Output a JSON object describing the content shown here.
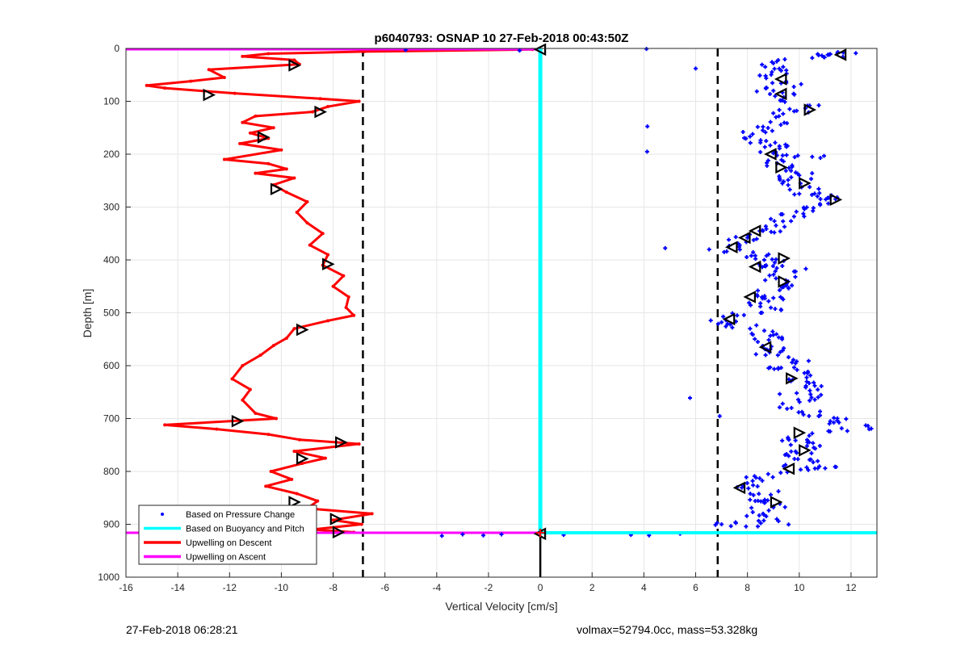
{
  "chart_data": {
    "type": "scatter",
    "title": "p6040793: OSNAP 10 27-Feb-2018 00:43:50Z",
    "xlabel": "Vertical Velocity [cm/s]",
    "ylabel": "Depth [m]",
    "xlim": [
      -16,
      13
    ],
    "ylim": [
      0,
      1000
    ],
    "y_reversed": true,
    "grid": true,
    "xticks": [
      -16,
      -14,
      -12,
      -10,
      -8,
      -6,
      -4,
      -2,
      0,
      2,
      4,
      6,
      8,
      10,
      12
    ],
    "yticks": [
      0,
      100,
      200,
      300,
      400,
      500,
      600,
      700,
      800,
      900,
      1000
    ],
    "legend_position": "bottom-left",
    "legend": [
      {
        "label": "Based on Pressure Change",
        "color": "#0000ff",
        "style": "marker"
      },
      {
        "label": "Based on Buoyancy and Pitch",
        "color": "#00ffff",
        "style": "line"
      },
      {
        "label": "Upwelling on Descent",
        "color": "#ff0000",
        "style": "line"
      },
      {
        "label": "Upwelling on Ascent",
        "color": "#ff00ff",
        "style": "line"
      }
    ],
    "reference_lines": {
      "dashed_x": [
        -6.85,
        6.85
      ],
      "max_depth": 916
    },
    "series": [
      {
        "name": "Upwelling on Descent",
        "color": "#ff0000",
        "points": [
          [
            -0.3,
            2
          ],
          [
            -6.8,
            6
          ],
          [
            -10.5,
            10
          ],
          [
            -11.5,
            15
          ],
          [
            -9.5,
            22
          ],
          [
            -9.3,
            30
          ],
          [
            -12.8,
            40
          ],
          [
            -12.2,
            55
          ],
          [
            -13.5,
            62
          ],
          [
            -15.2,
            70
          ],
          [
            -14.5,
            75
          ],
          [
            -11.8,
            85
          ],
          [
            -8.5,
            95
          ],
          [
            -7.0,
            100
          ],
          [
            -8.2,
            110
          ],
          [
            -8.8,
            120
          ],
          [
            -11.0,
            128
          ],
          [
            -11.5,
            140
          ],
          [
            -10.3,
            150
          ],
          [
            -11.2,
            160
          ],
          [
            -10.5,
            170
          ],
          [
            -11.6,
            180
          ],
          [
            -10.0,
            192
          ],
          [
            -12.2,
            210
          ],
          [
            -10.5,
            218
          ],
          [
            -9.8,
            228
          ],
          [
            -11.0,
            236
          ],
          [
            -9.5,
            245
          ],
          [
            -10.3,
            258
          ],
          [
            -9.8,
            272
          ],
          [
            -9.0,
            290
          ],
          [
            -9.4,
            310
          ],
          [
            -9.0,
            330
          ],
          [
            -8.4,
            350
          ],
          [
            -8.9,
            372
          ],
          [
            -8.2,
            390
          ],
          [
            -8.4,
            410
          ],
          [
            -7.6,
            430
          ],
          [
            -8.0,
            450
          ],
          [
            -7.4,
            470
          ],
          [
            -7.5,
            490
          ],
          [
            -7.2,
            505
          ],
          [
            -8.2,
            515
          ],
          [
            -9.5,
            530
          ],
          [
            -9.8,
            548
          ],
          [
            -10.3,
            562
          ],
          [
            -10.8,
            580
          ],
          [
            -11.5,
            600
          ],
          [
            -11.9,
            625
          ],
          [
            -11.2,
            645
          ],
          [
            -11.5,
            665
          ],
          [
            -11.0,
            690
          ],
          [
            -10.2,
            700
          ],
          [
            -14.5,
            712
          ],
          [
            -12.5,
            720
          ],
          [
            -10.5,
            730
          ],
          [
            -9.3,
            740
          ],
          [
            -7.0,
            748
          ],
          [
            -9.5,
            762
          ],
          [
            -8.3,
            775
          ],
          [
            -9.2,
            785
          ],
          [
            -10.4,
            800
          ],
          [
            -9.6,
            815
          ],
          [
            -10.6,
            828
          ],
          [
            -9.4,
            842
          ],
          [
            -8.6,
            856
          ],
          [
            -9.0,
            870
          ],
          [
            -6.5,
            880
          ],
          [
            -8.0,
            892
          ],
          [
            -6.9,
            900
          ],
          [
            -8.8,
            910
          ],
          [
            -7.2,
            915
          ]
        ]
      },
      {
        "name": "Based on Pressure Change",
        "color": "#0000ff",
        "points": [
          [
            11.7,
            8
          ],
          [
            11.1,
            12
          ],
          [
            10.5,
            18
          ],
          [
            9.0,
            28
          ],
          [
            9.3,
            42
          ],
          [
            8.7,
            52
          ],
          [
            9.5,
            65
          ],
          [
            9.0,
            80
          ],
          [
            9.4,
            92
          ],
          [
            10.4,
            108
          ],
          [
            9.9,
            118
          ],
          [
            9.1,
            130
          ],
          [
            8.6,
            148
          ],
          [
            8.2,
            162
          ],
          [
            8.5,
            178
          ],
          [
            9.5,
            186
          ],
          [
            9.0,
            198
          ],
          [
            10.5,
            205
          ],
          [
            8.8,
            212
          ],
          [
            9.6,
            226
          ],
          [
            10.0,
            240
          ],
          [
            9.4,
            252
          ],
          [
            10.4,
            262
          ],
          [
            10.0,
            275
          ],
          [
            11.4,
            285
          ],
          [
            10.8,
            294
          ],
          [
            10.2,
            304
          ],
          [
            9.8,
            318
          ],
          [
            9.1,
            335
          ],
          [
            8.6,
            345
          ],
          [
            8.0,
            358
          ],
          [
            7.7,
            372
          ],
          [
            7.2,
            384
          ],
          [
            8.3,
            392
          ],
          [
            9.4,
            402
          ],
          [
            8.7,
            412
          ],
          [
            9.8,
            422
          ],
          [
            9.1,
            435
          ],
          [
            9.5,
            448
          ],
          [
            8.4,
            458
          ],
          [
            9.0,
            472
          ],
          [
            8.5,
            482
          ],
          [
            9.3,
            495
          ],
          [
            7.6,
            505
          ],
          [
            7.0,
            518
          ],
          [
            8.1,
            530
          ],
          [
            9.0,
            542
          ],
          [
            8.4,
            555
          ],
          [
            9.4,
            567
          ],
          [
            8.7,
            580
          ],
          [
            9.9,
            592
          ],
          [
            9.3,
            604
          ],
          [
            10.2,
            614
          ],
          [
            9.6,
            626
          ],
          [
            10.6,
            638
          ],
          [
            9.9,
            652
          ],
          [
            10.4,
            666
          ],
          [
            9.7,
            680
          ],
          [
            10.8,
            694
          ],
          [
            11.2,
            705
          ],
          [
            12.7,
            720
          ],
          [
            10.5,
            728
          ],
          [
            9.6,
            740
          ],
          [
            10.3,
            752
          ],
          [
            9.9,
            765
          ],
          [
            10.4,
            778
          ],
          [
            9.4,
            790
          ],
          [
            11.0,
            794
          ],
          [
            8.8,
            805
          ],
          [
            8.2,
            818
          ],
          [
            7.6,
            830
          ],
          [
            8.9,
            844
          ],
          [
            8.3,
            856
          ],
          [
            9.0,
            866
          ],
          [
            8.6,
            880
          ],
          [
            9.2,
            894
          ],
          [
            8.4,
            904
          ],
          [
            7.0,
            900
          ],
          [
            4.1,
            1
          ],
          [
            6.0,
            38
          ],
          [
            -5.2,
            3
          ],
          [
            -0.8,
            4
          ],
          [
            -3.0,
            919
          ],
          [
            -1.5,
            919
          ],
          [
            0.9,
            920
          ],
          [
            3.5,
            920
          ],
          [
            4.2,
            921
          ],
          [
            5.4,
            918
          ],
          [
            -2.2,
            921
          ],
          [
            -3.8,
            922
          ]
        ]
      }
    ],
    "markers": [
      {
        "x": 11.6,
        "y": 12,
        "direction": "left"
      },
      {
        "x": 9.3,
        "y": 58,
        "direction": "left"
      },
      {
        "x": 9.3,
        "y": 86,
        "direction": "left"
      },
      {
        "x": 10.4,
        "y": 116,
        "direction": "right"
      },
      {
        "x": 8.9,
        "y": 200,
        "direction": "left"
      },
      {
        "x": 9.3,
        "y": 225,
        "direction": "right"
      },
      {
        "x": 10.2,
        "y": 255,
        "direction": "right"
      },
      {
        "x": 11.4,
        "y": 286,
        "direction": "right"
      },
      {
        "x": 8.3,
        "y": 345,
        "direction": "left"
      },
      {
        "x": 7.9,
        "y": 358,
        "direction": "left"
      },
      {
        "x": 7.4,
        "y": 376,
        "direction": "left"
      },
      {
        "x": 9.4,
        "y": 397,
        "direction": "right"
      },
      {
        "x": 8.3,
        "y": 413,
        "direction": "left"
      },
      {
        "x": 9.4,
        "y": 441,
        "direction": "right"
      },
      {
        "x": 8.1,
        "y": 470,
        "direction": "left"
      },
      {
        "x": 7.3,
        "y": 512,
        "direction": "left"
      },
      {
        "x": 8.7,
        "y": 565,
        "direction": "left"
      },
      {
        "x": 9.7,
        "y": 624,
        "direction": "right"
      },
      {
        "x": 10.0,
        "y": 727,
        "direction": "right"
      },
      {
        "x": 10.2,
        "y": 760,
        "direction": "right"
      },
      {
        "x": 9.6,
        "y": 795,
        "direction": "left"
      },
      {
        "x": 7.7,
        "y": 831,
        "direction": "left"
      },
      {
        "x": 9.1,
        "y": 858,
        "direction": "right"
      },
      {
        "x": -9.5,
        "y": 32,
        "direction": "right"
      },
      {
        "x": -12.8,
        "y": 88,
        "direction": "right"
      },
      {
        "x": -8.5,
        "y": 120,
        "direction": "right"
      },
      {
        "x": -10.7,
        "y": 168,
        "direction": "right"
      },
      {
        "x": -10.2,
        "y": 266,
        "direction": "right"
      },
      {
        "x": -8.2,
        "y": 408,
        "direction": "right"
      },
      {
        "x": -9.2,
        "y": 532,
        "direction": "right"
      },
      {
        "x": -11.7,
        "y": 705,
        "direction": "right"
      },
      {
        "x": -7.7,
        "y": 745,
        "direction": "right"
      },
      {
        "x": -9.2,
        "y": 776,
        "direction": "right"
      },
      {
        "x": -9.5,
        "y": 858,
        "direction": "right"
      },
      {
        "x": -7.9,
        "y": 890,
        "direction": "right"
      },
      {
        "x": -7.8,
        "y": 915,
        "direction": "right"
      },
      {
        "x": 0.0,
        "y": 2,
        "direction": "left"
      },
      {
        "x": 0.0,
        "y": 918,
        "direction": "left"
      }
    ]
  },
  "footer": {
    "timestamp": "27-Feb-2018 06:28:21",
    "info": "volmax=52794.0cc, mass=53.328kg"
  }
}
